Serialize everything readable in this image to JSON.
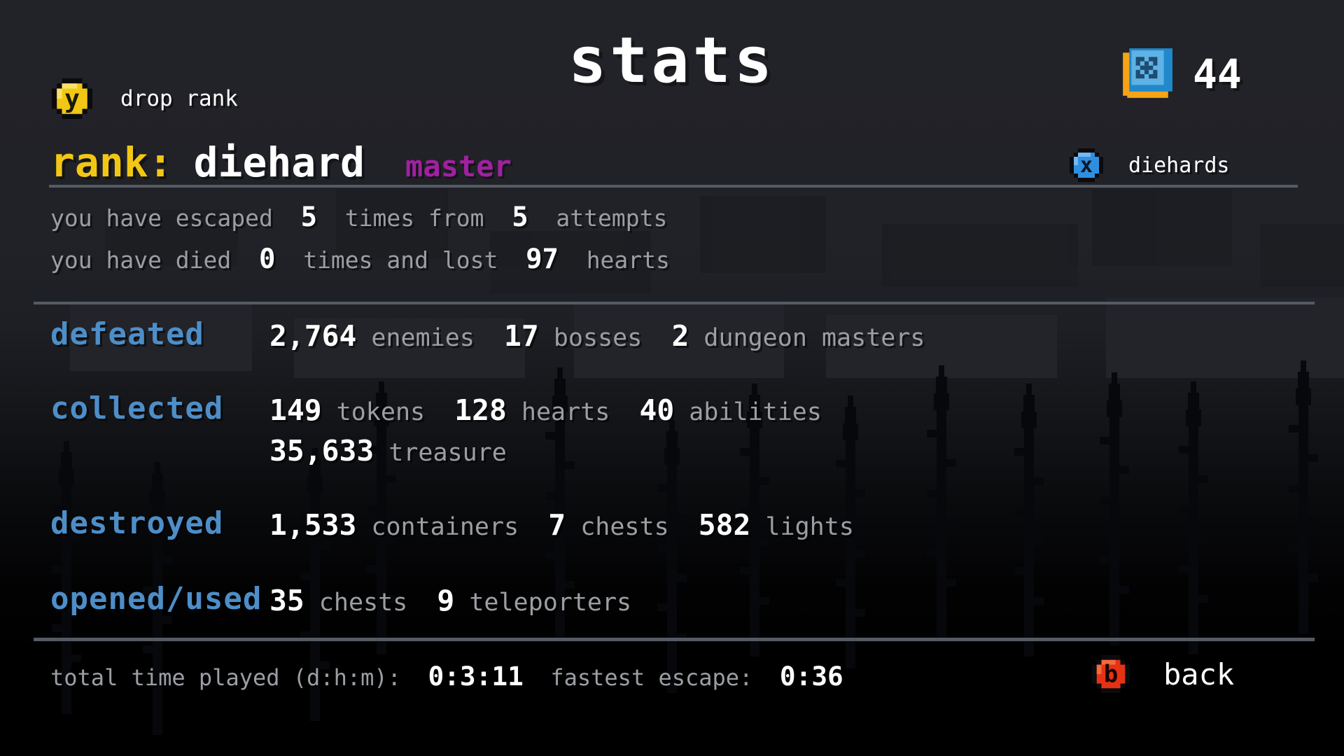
{
  "colors": {
    "bg_top": "#212228",
    "accent_blue": "#4d8ec8",
    "accent_yellow": "#f2c713",
    "accent_magenta": "#a120a1",
    "text_dim": "#9b9ea3",
    "text_bright": "#ffffff",
    "divider": "#555b63",
    "button_yellow": "#f2c713",
    "button_blue": "#2e8fe0",
    "button_red": "#e63214",
    "token_orange": "#f5a317",
    "token_blue": "#2089cb",
    "token_blue_light": "#5fb2e5"
  },
  "header": {
    "title": "stats",
    "token_count": "44",
    "drop_rank_button": "y",
    "drop_rank_label": "drop rank"
  },
  "rank": {
    "label": "rank:",
    "value": "diehard",
    "tier": "master",
    "badge_button": "x",
    "badge_label": "diehards"
  },
  "summary_lines": [
    [
      {
        "t": "you have escaped  ",
        "k": "dim"
      },
      {
        "t": "5",
        "k": "num"
      },
      {
        "t": "  times from  ",
        "k": "dim"
      },
      {
        "t": "5",
        "k": "num"
      },
      {
        "t": "  attempts",
        "k": "dim"
      }
    ],
    [
      {
        "t": "you have died  ",
        "k": "dim"
      },
      {
        "t": "0",
        "k": "num"
      },
      {
        "t": "  times and lost  ",
        "k": "dim"
      },
      {
        "t": "97",
        "k": "num"
      },
      {
        "t": "  hearts",
        "k": "dim"
      }
    ]
  ],
  "stats_rows": [
    {
      "label": "defeated",
      "lines": [
        [
          {
            "t": "2,764",
            "k": "num"
          },
          {
            "t": " enemies  ",
            "k": "dim"
          },
          {
            "t": "17",
            "k": "num"
          },
          {
            "t": " bosses  ",
            "k": "dim"
          },
          {
            "t": "2",
            "k": "num"
          },
          {
            "t": " dungeon masters",
            "k": "dim"
          }
        ]
      ]
    },
    {
      "label": "collected",
      "lines": [
        [
          {
            "t": "149",
            "k": "num"
          },
          {
            "t": " tokens  ",
            "k": "dim"
          },
          {
            "t": "128",
            "k": "num"
          },
          {
            "t": " hearts  ",
            "k": "dim"
          },
          {
            "t": "40",
            "k": "num"
          },
          {
            "t": " abilities",
            "k": "dim"
          }
        ],
        [
          {
            "t": "35,633",
            "k": "num"
          },
          {
            "t": " treasure",
            "k": "dim"
          }
        ]
      ]
    },
    {
      "label": "destroyed",
      "lines": [
        [
          {
            "t": "1,533",
            "k": "num"
          },
          {
            "t": " containers  ",
            "k": "dim"
          },
          {
            "t": "7",
            "k": "num"
          },
          {
            "t": " chests  ",
            "k": "dim"
          },
          {
            "t": "582",
            "k": "num"
          },
          {
            "t": " lights",
            "k": "dim"
          }
        ]
      ]
    },
    {
      "label": "opened/used",
      "lines": [
        [
          {
            "t": "35",
            "k": "num"
          },
          {
            "t": " chests  ",
            "k": "dim"
          },
          {
            "t": "9",
            "k": "num"
          },
          {
            "t": " teleporters",
            "k": "dim"
          }
        ]
      ]
    }
  ],
  "footer": {
    "line": [
      {
        "t": "total time played (d:h:m):  ",
        "k": "dim"
      },
      {
        "t": "0:3:11",
        "k": "num"
      },
      {
        "t": "  fastest escape:  ",
        "k": "dim"
      },
      {
        "t": "0:36",
        "k": "num"
      }
    ],
    "back_button": "b",
    "back_label": "back"
  }
}
